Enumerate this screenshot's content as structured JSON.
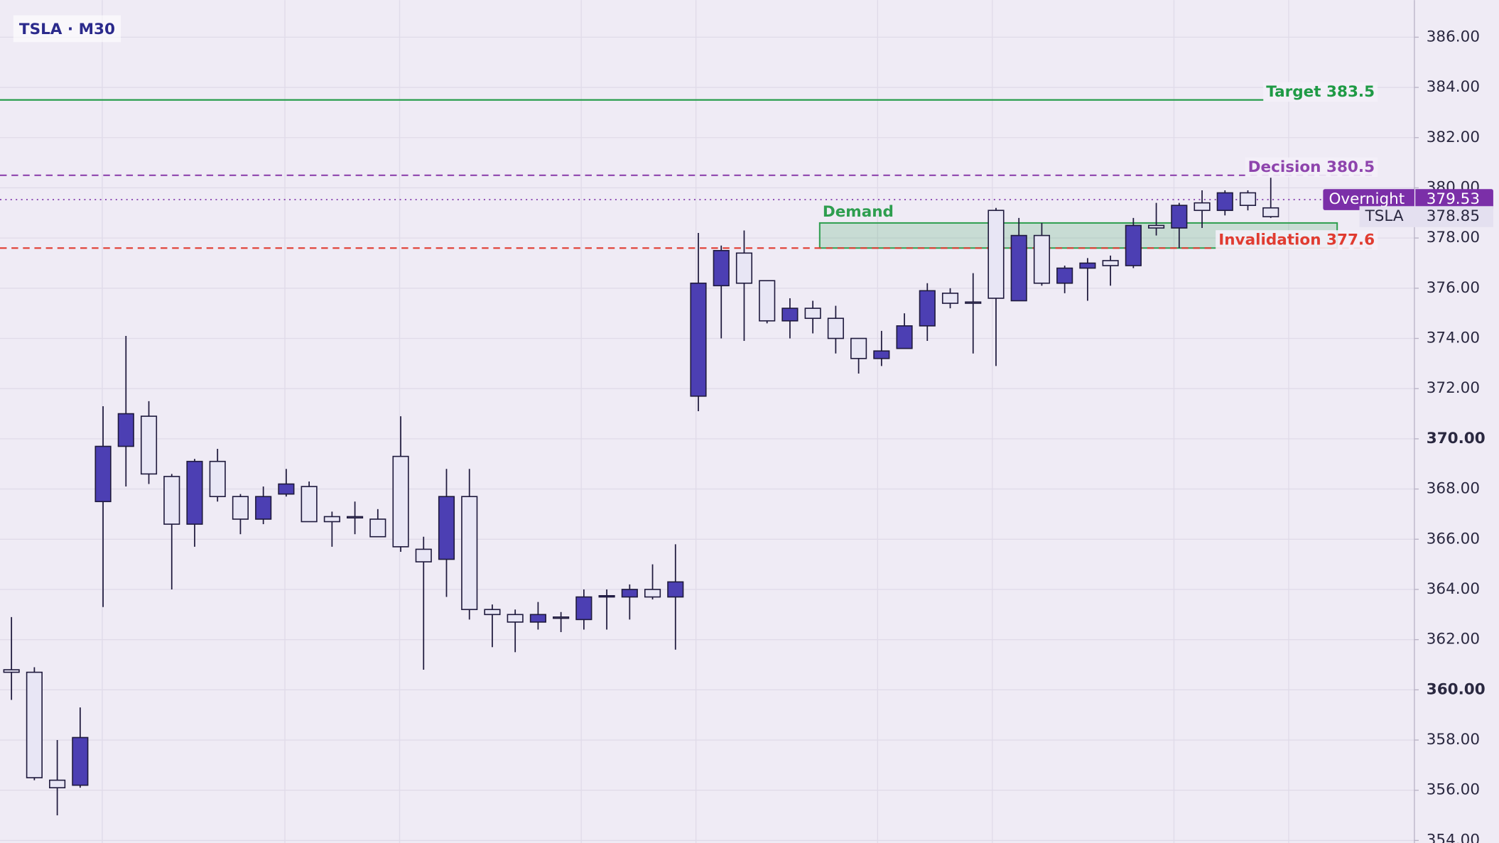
{
  "chart_data": {
    "type": "candlestick",
    "title": "TSLA · M30",
    "open": [
      360.8,
      360.7,
      356.4,
      356.2,
      367.5,
      369.7,
      370.9,
      368.5,
      366.6,
      369.1,
      367.7,
      366.8,
      367.8,
      368.1,
      366.9,
      366.9,
      366.8,
      369.3,
      365.6,
      365.2,
      367.7,
      363.2,
      363.0,
      362.7,
      362.9,
      362.8,
      363.7,
      363.7,
      364.0,
      363.7,
      371.7,
      376.1,
      377.4,
      376.3,
      374.7,
      375.2,
      374.8,
      374.0,
      373.2,
      373.6,
      374.5,
      375.8,
      375.45,
      379.1,
      375.5,
      378.1,
      376.2,
      376.8,
      377.1,
      376.9,
      378.5,
      378.4,
      379.4,
      379.1,
      379.8,
      379.2
    ],
    "high": [
      362.9,
      360.9,
      358.0,
      359.3,
      371.3,
      374.1,
      371.5,
      368.6,
      369.2,
      369.6,
      367.8,
      368.1,
      368.8,
      368.3,
      367.1,
      367.5,
      367.2,
      370.9,
      366.1,
      368.8,
      368.8,
      363.4,
      363.2,
      363.5,
      363.1,
      364.0,
      364.0,
      364.2,
      365.0,
      365.8,
      378.2,
      377.7,
      378.3,
      376.3,
      375.6,
      375.5,
      375.3,
      374.0,
      374.3,
      375.0,
      376.2,
      376.0,
      376.6,
      379.2,
      378.8,
      378.6,
      376.9,
      377.2,
      377.3,
      378.8,
      379.4,
      379.4,
      379.9,
      379.9,
      379.9,
      380.4
    ],
    "low": [
      359.6,
      356.4,
      355.0,
      356.1,
      363.3,
      368.1,
      368.2,
      364.0,
      365.7,
      367.5,
      366.2,
      366.6,
      367.7,
      366.7,
      365.7,
      366.2,
      366.1,
      365.5,
      360.8,
      363.7,
      362.8,
      361.7,
      361.5,
      362.4,
      362.3,
      362.4,
      362.4,
      362.8,
      363.6,
      361.6,
      371.1,
      374.0,
      373.9,
      374.6,
      374.0,
      374.2,
      373.4,
      372.6,
      372.9,
      373.6,
      373.9,
      375.2,
      373.4,
      372.9,
      375.5,
      376.1,
      375.8,
      375.5,
      376.1,
      376.8,
      378.1,
      377.6,
      378.4,
      378.9,
      379.1,
      378.8
    ],
    "close": [
      360.7,
      356.5,
      356.1,
      358.1,
      369.7,
      371.0,
      368.6,
      366.6,
      369.1,
      367.7,
      366.8,
      367.7,
      368.2,
      366.7,
      366.7,
      366.85,
      366.1,
      365.7,
      365.1,
      367.7,
      363.2,
      363.0,
      362.7,
      363.0,
      362.85,
      363.7,
      363.75,
      364.0,
      363.7,
      364.3,
      376.2,
      377.5,
      376.2,
      374.7,
      375.2,
      374.8,
      374.0,
      373.2,
      373.5,
      374.5,
      375.9,
      375.4,
      375.4,
      375.6,
      378.1,
      376.2,
      376.8,
      377.0,
      376.9,
      378.5,
      378.4,
      379.3,
      379.1,
      379.8,
      379.3,
      378.85
    ],
    "up_color": "#4c3fb3",
    "down_color": "#e8e6f5",
    "wick_color": "#1f1a3d",
    "ylim": [
      353.9,
      387.48
    ],
    "yticks": [
      {
        "value": 354,
        "label": "354.00"
      },
      {
        "value": 356,
        "label": "356.00"
      },
      {
        "value": 358,
        "label": "358.00"
      },
      {
        "value": 360,
        "label": "360.00",
        "bold": true
      },
      {
        "value": 362,
        "label": "362.00"
      },
      {
        "value": 364,
        "label": "364.00"
      },
      {
        "value": 366,
        "label": "366.00"
      },
      {
        "value": 368,
        "label": "368.00"
      },
      {
        "value": 370,
        "label": "370.00",
        "bold": true
      },
      {
        "value": 372,
        "label": "372.00"
      },
      {
        "value": 374,
        "label": "374.00"
      },
      {
        "value": 376,
        "label": "376.00"
      },
      {
        "value": 378,
        "label": "378.00"
      },
      {
        "value": 380,
        "label": "380.00"
      },
      {
        "value": 382,
        "label": "382.00"
      },
      {
        "value": 384,
        "label": "384.00"
      },
      {
        "value": 386,
        "label": "386.00"
      }
    ],
    "grid": true,
    "levels": [
      {
        "text": "Target 383.5",
        "value": 383.5,
        "color": "#1f9a45",
        "style": "solid"
      },
      {
        "text": "Decision 380.5",
        "value": 380.5,
        "color": "#8e44ad",
        "style": "dashed"
      },
      {
        "text": "Invalidation 377.6",
        "value": 377.6,
        "color": "#e03c31",
        "style": "dashed"
      }
    ],
    "zone": {
      "label": "Demand",
      "low": 377.6,
      "high": 378.6,
      "color": "#2e9e4f"
    },
    "overnight": {
      "label": "Overnight",
      "value": 379.53,
      "color": "#7b2fa8"
    },
    "last": {
      "label": "TSLA",
      "value": 378.85
    }
  }
}
